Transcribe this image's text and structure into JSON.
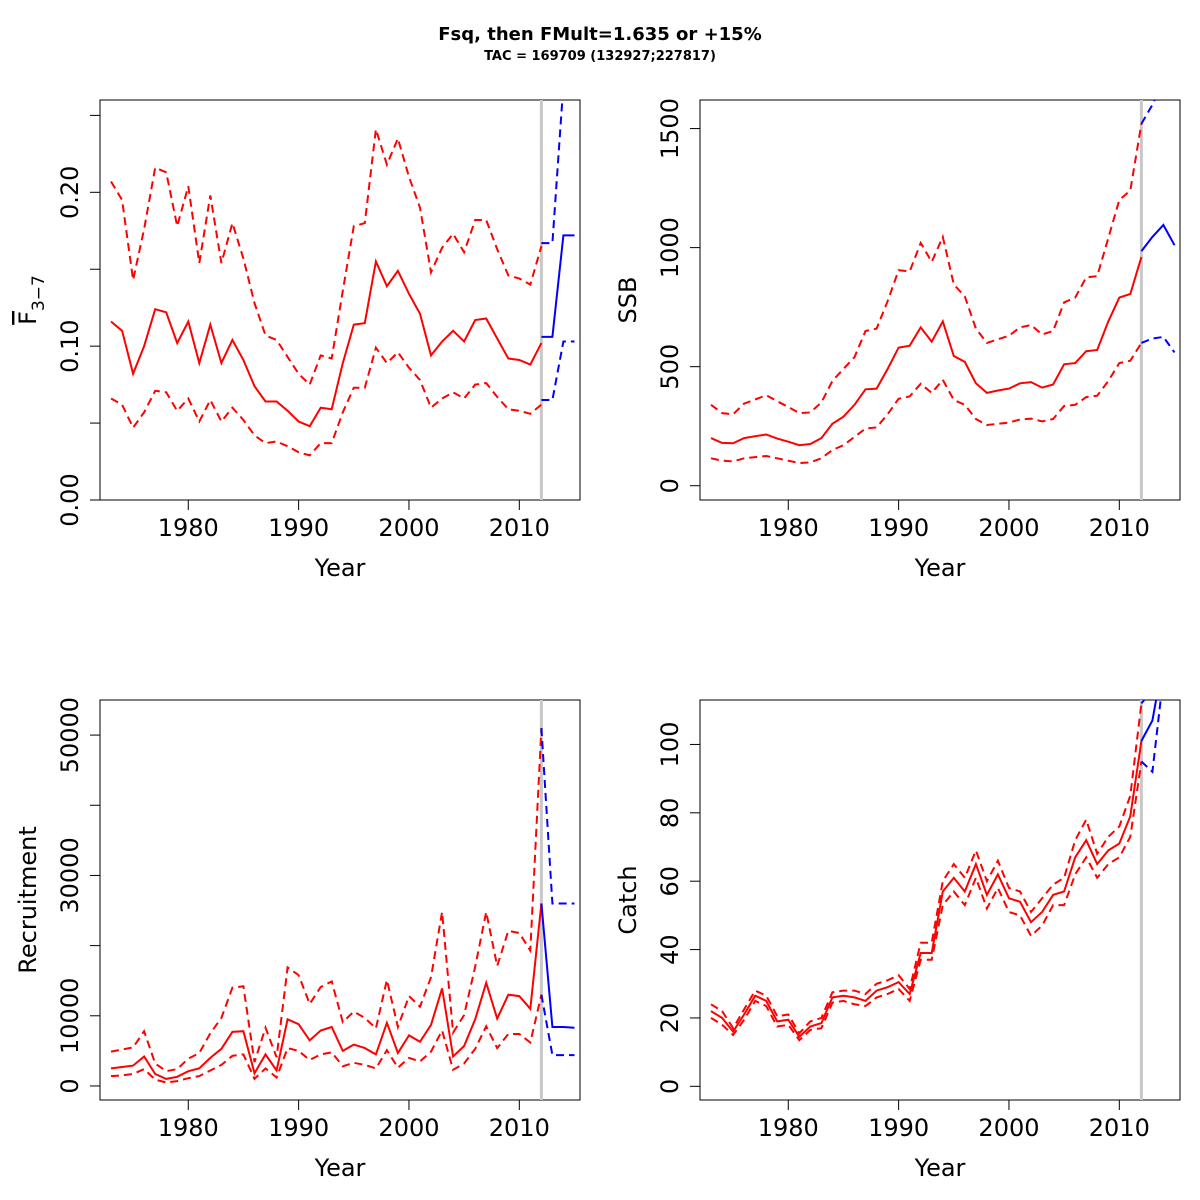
{
  "title": "Fsq, then FMult=1.635 or +15%",
  "subtitle": "TAC = 169709 (132927;227817)",
  "colors": {
    "historical": "#ff0000",
    "forecast": "#0000ff",
    "marker": "#c8c8c8",
    "axis": "#000000"
  },
  "chart_data": [
    {
      "type": "line",
      "id": "f",
      "xlabel": "Year",
      "ylabel": "F",
      "ylabel_sub": "3−7",
      "xlim": [
        1972,
        2015.5
      ],
      "ylim": [
        0,
        0.26
      ],
      "xticks": [
        1980,
        1990,
        2000,
        2010
      ],
      "yticks": [
        0,
        0.05,
        0.1,
        0.15,
        0.2,
        0.25
      ],
      "ytick_labels": [
        "0.00",
        "",
        "0.10",
        "",
        "0.20",
        ""
      ],
      "marker_year": 2012,
      "x": [
        1973,
        1974,
        1975,
        1976,
        1977,
        1978,
        1979,
        1980,
        1981,
        1982,
        1983,
        1984,
        1985,
        1986,
        1987,
        1988,
        1989,
        1990,
        1991,
        1992,
        1993,
        1994,
        1995,
        1996,
        1997,
        1998,
        1999,
        2000,
        2001,
        2002,
        2003,
        2004,
        2005,
        2006,
        2007,
        2008,
        2009,
        2010,
        2011,
        2012
      ],
      "series": [
        {
          "role": "estimate",
          "values": [
            0.116,
            0.11,
            0.082,
            0.1,
            0.124,
            0.122,
            0.102,
            0.116,
            0.089,
            0.114,
            0.089,
            0.104,
            0.091,
            0.074,
            0.064,
            0.064,
            0.058,
            0.051,
            0.048,
            0.06,
            0.059,
            0.089,
            0.114,
            0.115,
            0.155,
            0.139,
            0.149,
            0.134,
            0.121,
            0.094,
            0.103,
            0.11,
            0.103,
            0.117,
            0.118,
            0.105,
            0.092,
            0.091,
            0.088,
            0.102
          ]
        },
        {
          "role": "upper",
          "values": [
            0.207,
            0.195,
            0.143,
            0.176,
            0.216,
            0.213,
            0.178,
            0.204,
            0.154,
            0.198,
            0.154,
            0.18,
            0.157,
            0.128,
            0.107,
            0.104,
            0.093,
            0.082,
            0.075,
            0.094,
            0.092,
            0.136,
            0.178,
            0.18,
            0.241,
            0.218,
            0.235,
            0.21,
            0.19,
            0.148,
            0.164,
            0.173,
            0.161,
            0.182,
            0.182,
            0.163,
            0.146,
            0.144,
            0.14,
            0.165
          ]
        },
        {
          "role": "lower",
          "values": [
            0.066,
            0.062,
            0.047,
            0.057,
            0.071,
            0.07,
            0.058,
            0.066,
            0.051,
            0.065,
            0.051,
            0.06,
            0.052,
            0.042,
            0.037,
            0.038,
            0.035,
            0.031,
            0.029,
            0.037,
            0.037,
            0.057,
            0.073,
            0.073,
            0.099,
            0.089,
            0.096,
            0.086,
            0.078,
            0.06,
            0.066,
            0.07,
            0.066,
            0.075,
            0.076,
            0.067,
            0.059,
            0.058,
            0.056,
            0.062
          ]
        }
      ],
      "forecast": {
        "x": [
          2012,
          2013,
          2014,
          2015
        ],
        "estimate": [
          0.106,
          0.106,
          0.172,
          0.172
        ],
        "upper": [
          0.167,
          0.167,
          0.27,
          0.27
        ],
        "lower": [
          0.065,
          0.065,
          0.103,
          0.103
        ]
      }
    },
    {
      "type": "line",
      "id": "ssb",
      "xlabel": "Year",
      "ylabel": "SSB",
      "xlim": [
        1972,
        2015.5
      ],
      "ylim": [
        -60,
        1620
      ],
      "xticks": [
        1980,
        1990,
        2000,
        2010
      ],
      "yticks": [
        0,
        500,
        1000,
        1500
      ],
      "ytick_labels": [
        "0",
        "500",
        "1000",
        "1500"
      ],
      "marker_year": 2012,
      "x": [
        1973,
        1974,
        1975,
        1976,
        1977,
        1978,
        1979,
        1980,
        1981,
        1982,
        1983,
        1984,
        1985,
        1986,
        1987,
        1988,
        1989,
        1990,
        1991,
        1992,
        1993,
        1994,
        1995,
        1996,
        1997,
        1998,
        1999,
        2000,
        2001,
        2002,
        2003,
        2004,
        2005,
        2006,
        2007,
        2008,
        2009,
        2010,
        2011,
        2012
      ],
      "series": [
        {
          "role": "estimate",
          "values": [
            200,
            180,
            178,
            200,
            208,
            215,
            198,
            185,
            170,
            175,
            200,
            260,
            290,
            340,
            405,
            408,
            490,
            580,
            588,
            665,
            605,
            690,
            545,
            520,
            430,
            390,
            400,
            408,
            430,
            435,
            412,
            425,
            510,
            515,
            565,
            570,
            690,
            790,
            805,
            960
          ]
        },
        {
          "role": "upper",
          "values": [
            340,
            305,
            300,
            345,
            362,
            380,
            355,
            330,
            305,
            308,
            350,
            440,
            490,
            540,
            650,
            660,
            775,
            905,
            900,
            1020,
            940,
            1045,
            845,
            795,
            660,
            600,
            615,
            630,
            665,
            675,
            635,
            650,
            770,
            790,
            875,
            880,
            1040,
            1200,
            1240,
            1520
          ]
        },
        {
          "role": "lower",
          "values": [
            115,
            105,
            102,
            115,
            120,
            125,
            115,
            105,
            95,
            98,
            115,
            150,
            170,
            205,
            240,
            245,
            300,
            365,
            375,
            428,
            390,
            445,
            360,
            340,
            280,
            255,
            260,
            265,
            278,
            282,
            270,
            280,
            335,
            340,
            372,
            378,
            440,
            515,
            525,
            600
          ]
        }
      ],
      "forecast": {
        "x": [
          2012,
          2013,
          2014,
          2015
        ],
        "estimate": [
          985,
          1045,
          1095,
          1010
        ],
        "upper": [
          1520,
          1600,
          1700,
          1700
        ],
        "lower": [
          600,
          618,
          625,
          560
        ]
      }
    },
    {
      "type": "line",
      "id": "recruitment",
      "xlabel": "Year",
      "ylabel": "Recruitment",
      "xlim": [
        1972,
        2015.5
      ],
      "ylim": [
        -2000,
        55000
      ],
      "xticks": [
        1980,
        1990,
        2000,
        2010
      ],
      "yticks": [
        0,
        10000,
        20000,
        30000,
        40000,
        50000
      ],
      "ytick_labels": [
        "0",
        "10000",
        "",
        "30000",
        "",
        "50000"
      ],
      "marker_year": 2012,
      "x": [
        1973,
        1974,
        1975,
        1976,
        1977,
        1978,
        1979,
        1980,
        1981,
        1982,
        1983,
        1984,
        1985,
        1986,
        1987,
        1988,
        1989,
        1990,
        1991,
        1992,
        1993,
        1994,
        1995,
        1996,
        1997,
        1998,
        1999,
        2000,
        2001,
        2002,
        2003,
        2004,
        2005,
        2006,
        2007,
        2008,
        2009,
        2010,
        2011,
        2012
      ],
      "series": [
        {
          "role": "estimate",
          "values": [
            2500,
            2700,
            2900,
            4200,
            1700,
            1000,
            1300,
            2100,
            2500,
            4000,
            5300,
            7700,
            7800,
            1800,
            4500,
            2200,
            9500,
            8800,
            6500,
            7900,
            8400,
            5000,
            5900,
            5400,
            4500,
            9000,
            4700,
            7200,
            6300,
            8700,
            13900,
            4200,
            5700,
            9500,
            14700,
            9600,
            13000,
            12800,
            11000,
            26000
          ]
        },
        {
          "role": "upper",
          "values": [
            4900,
            5200,
            5500,
            7800,
            3200,
            2100,
            2400,
            3900,
            4700,
            7500,
            9700,
            14000,
            14200,
            3400,
            8300,
            4100,
            16900,
            15800,
            11700,
            14100,
            14900,
            9100,
            10600,
            9700,
            8200,
            15100,
            8400,
            12800,
            11300,
            15500,
            24800,
            7600,
            10100,
            17000,
            24800,
            17100,
            22100,
            21800,
            19300,
            51000
          ]
        },
        {
          "role": "lower",
          "values": [
            1400,
            1500,
            1700,
            2400,
            900,
            500,
            700,
            1100,
            1400,
            2200,
            3000,
            4300,
            4500,
            1000,
            2500,
            1200,
            5400,
            5000,
            3700,
            4500,
            4800,
            2800,
            3300,
            3000,
            2500,
            5100,
            2600,
            4000,
            3500,
            4900,
            7900,
            2300,
            3200,
            5300,
            8500,
            5400,
            7400,
            7400,
            6200,
            13000
          ]
        }
      ],
      "forecast": {
        "x": [
          2012,
          2013,
          2014,
          2015
        ],
        "estimate": [
          26000,
          8400,
          8400,
          8300
        ],
        "upper": [
          51000,
          26000,
          26000,
          26000
        ],
        "lower": [
          13000,
          4400,
          4400,
          4400
        ]
      }
    },
    {
      "type": "line",
      "id": "catch",
      "xlabel": "Year",
      "ylabel": "Catch",
      "xlim": [
        1972,
        2015.5
      ],
      "ylim": [
        -4,
        113
      ],
      "xticks": [
        1980,
        1990,
        2000,
        2010
      ],
      "yticks": [
        0,
        20,
        40,
        60,
        80,
        100
      ],
      "ytick_labels": [
        "0",
        "20",
        "40",
        "60",
        "80",
        "100"
      ],
      "marker_year": 2012,
      "x": [
        1973,
        1974,
        1975,
        1976,
        1977,
        1978,
        1979,
        1980,
        1981,
        1982,
        1983,
        1984,
        1985,
        1986,
        1987,
        1988,
        1989,
        1990,
        1991,
        1992,
        1993,
        1994,
        1995,
        1996,
        1997,
        1998,
        1999,
        2000,
        2001,
        2002,
        2003,
        2004,
        2005,
        2006,
        2007,
        2008,
        2009,
        2010,
        2011,
        2012
      ],
      "series": [
        {
          "role": "estimate",
          "values": [
            22,
            20,
            16,
            21,
            26.5,
            25,
            19,
            19.5,
            14.5,
            17.5,
            18.5,
            26,
            26.5,
            26,
            25,
            28,
            29,
            30.5,
            27,
            39,
            39,
            57,
            61,
            57,
            65,
            56,
            62,
            55,
            54,
            48,
            51,
            56,
            57,
            67,
            72,
            65,
            69,
            71,
            79,
            101
          ]
        },
        {
          "role": "upper",
          "values": [
            24,
            22,
            17,
            22.5,
            28,
            26.5,
            20.5,
            21,
            15.5,
            19,
            20,
            27.5,
            28,
            28,
            27,
            30,
            31,
            32.5,
            28.5,
            42,
            42,
            60,
            65,
            61,
            69,
            60,
            66,
            58,
            57,
            51,
            55,
            59,
            61,
            72,
            78,
            68,
            73,
            76,
            85,
            112
          ]
        },
        {
          "role": "lower",
          "values": [
            20,
            18,
            15,
            19.5,
            25,
            23.5,
            17.5,
            18,
            13.5,
            16.5,
            17,
            24.5,
            25,
            24,
            23.5,
            26,
            27,
            28.5,
            25,
            37,
            37,
            53,
            57,
            53,
            61,
            52,
            58,
            51,
            50,
            44,
            47,
            53,
            53,
            62,
            67,
            61,
            65,
            67,
            73,
            95
          ]
        }
      ],
      "forecast": {
        "x": [
          2012,
          2013,
          2014
        ],
        "estimate": [
          101,
          107,
          125
        ],
        "upper": [
          112,
          116,
          140
        ],
        "lower": [
          95,
          92,
          120
        ]
      }
    }
  ]
}
